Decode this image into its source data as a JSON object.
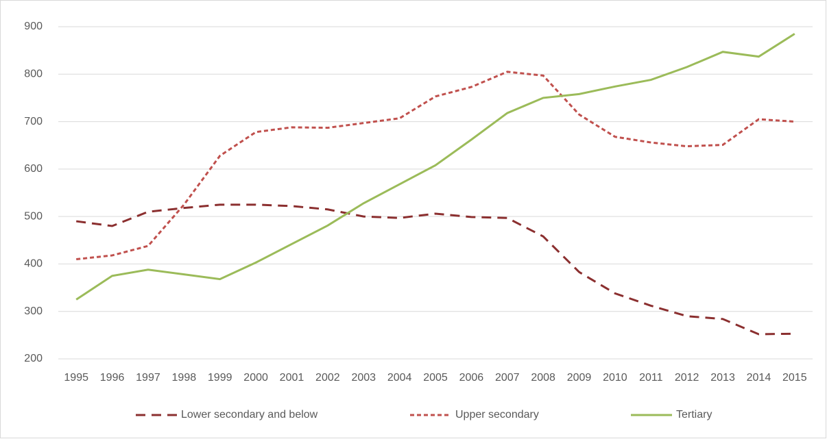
{
  "chart_data": {
    "type": "line",
    "categories": [
      "1995",
      "1996",
      "1997",
      "1998",
      "1999",
      "2000",
      "2001",
      "2002",
      "2003",
      "2004",
      "2005",
      "2006",
      "2007",
      "2008",
      "2009",
      "2010",
      "2011",
      "2012",
      "2013",
      "2014",
      "2015"
    ],
    "series": [
      {
        "name": "Lower secondary and below",
        "color": "#8b2f2f",
        "dash": "long",
        "values": [
          490,
          480,
          510,
          518,
          525,
          525,
          522,
          515,
          500,
          497,
          506,
          499,
          497,
          458,
          383,
          338,
          312,
          290,
          284,
          252,
          253
        ]
      },
      {
        "name": "Upper secondary",
        "color": "#c0504d",
        "dash": "short",
        "values": [
          410,
          418,
          438,
          525,
          628,
          678,
          688,
          687,
          697,
          707,
          753,
          773,
          805,
          797,
          715,
          668,
          656,
          648,
          651,
          705,
          700
        ]
      },
      {
        "name": "Tertiary",
        "color": "#9bbb59",
        "dash": "solid",
        "values": [
          325,
          375,
          388,
          378,
          368,
          403,
          442,
          481,
          528,
          568,
          608,
          662,
          718,
          750,
          758,
          774,
          788,
          815,
          847,
          837,
          885
        ]
      }
    ],
    "ylim": [
      200,
      900
    ],
    "yticks": [
      200,
      300,
      400,
      500,
      600,
      700,
      800,
      900
    ],
    "grid": true,
    "legend": "bottom"
  }
}
